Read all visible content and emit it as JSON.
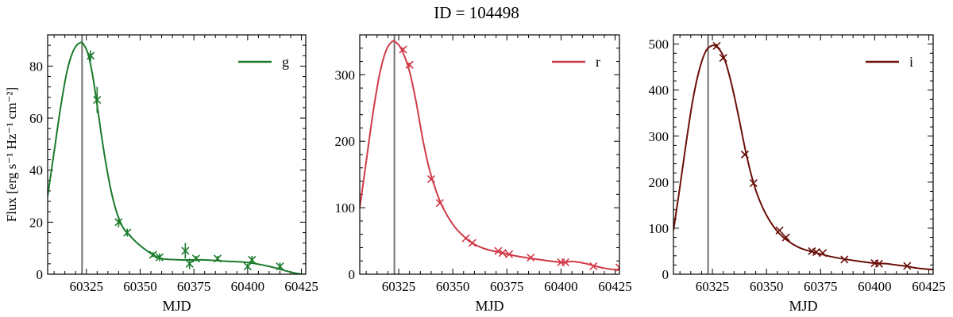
{
  "figure": {
    "title": "ID = 104498"
  },
  "chart_data": [
    {
      "type": "line",
      "xlabel": "MJD",
      "ylabel": "Flux [erg s⁻¹ Hz⁻¹ cm⁻²]",
      "xlim": [
        60307,
        60427
      ],
      "ylim": [
        0,
        92
      ],
      "xticks": [
        60325,
        60350,
        60375,
        60400,
        60425
      ],
      "yticks": [
        0,
        20,
        40,
        60,
        80
      ],
      "vline_x": 60323,
      "legend": {
        "label": "g",
        "position": "top-right"
      },
      "color": "#1a7a2a",
      "model": {
        "x": [
          60307,
          60310,
          60313,
          60316,
          60319,
          60322,
          60324,
          60326,
          60328,
          60330,
          60333,
          60336,
          60339,
          60342,
          60345,
          60350,
          60355,
          60360,
          60370,
          60380,
          60390,
          60400,
          60410,
          60420,
          60425,
          60427
        ],
        "y": [
          30,
          47,
          64,
          78,
          86,
          89,
          88,
          84,
          76,
          65,
          48,
          34,
          24,
          18,
          15,
          11,
          8,
          6,
          5.5,
          5.5,
          5,
          4.5,
          3,
          0.8,
          0,
          0
        ]
      },
      "observations": {
        "x": [
          60327,
          60330,
          60340,
          60344,
          60356,
          60359,
          60371,
          60373,
          60376,
          60386,
          60400,
          60402,
          60415
        ],
        "y": [
          84,
          67,
          20,
          16,
          7.5,
          6.5,
          9,
          4,
          6,
          6,
          3,
          5.5,
          3
        ],
        "err": [
          2,
          5,
          2,
          1.5,
          1,
          1.5,
          3,
          2,
          1,
          1,
          1,
          1.5,
          1.5
        ]
      }
    },
    {
      "type": "line",
      "xlabel": "MJD",
      "ylabel": "",
      "xlim": [
        60307,
        60427
      ],
      "ylim": [
        0,
        360
      ],
      "xticks": [
        60325,
        60350,
        60375,
        60400,
        60425
      ],
      "yticks": [
        0,
        100,
        200,
        300
      ],
      "vline_x": 60323,
      "legend": {
        "label": "r",
        "position": "top-right"
      },
      "color": "#d03a48",
      "model": {
        "x": [
          60307,
          60310,
          60313,
          60316,
          60319,
          60322,
          60324,
          60326,
          60328,
          60330,
          60333,
          60336,
          60339,
          60342,
          60345,
          60350,
          60355,
          60360,
          60365,
          60370,
          60380,
          60390,
          60400,
          60405,
          60410,
          60415,
          60420,
          60427
        ],
        "y": [
          100,
          170,
          240,
          298,
          335,
          350,
          348,
          340,
          325,
          305,
          260,
          205,
          160,
          128,
          103,
          75,
          57,
          45,
          38,
          34,
          27,
          22,
          18,
          19,
          17,
          13,
          9,
          6
        ]
      },
      "observations": {
        "x": [
          60327,
          60330,
          60340,
          60344,
          60356,
          60359,
          60371,
          60373,
          60376,
          60386,
          60400,
          60402,
          60415,
          60427
        ],
        "y": [
          338,
          315,
          143,
          107,
          54,
          47,
          35,
          32,
          30,
          25,
          18,
          18,
          12,
          10
        ],
        "err": [
          3,
          3,
          2,
          2,
          2,
          2,
          1.5,
          1.5,
          1.5,
          1.5,
          1.5,
          1.5,
          1.5,
          1.5
        ]
      }
    },
    {
      "type": "line",
      "xlabel": "MJD",
      "ylabel": "",
      "xlim": [
        60307,
        60427
      ],
      "ylim": [
        0,
        520
      ],
      "xticks": [
        60325,
        60350,
        60375,
        60400,
        60425
      ],
      "yticks": [
        0,
        100,
        200,
        300,
        400,
        500
      ],
      "vline_x": 60323,
      "legend": {
        "label": "i",
        "position": "top-right"
      },
      "color": "#6b0f0a",
      "model": {
        "x": [
          60307,
          60310,
          60313,
          60316,
          60319,
          60322,
          60325,
          60327,
          60329,
          60331,
          60334,
          60337,
          60340,
          60343,
          60346,
          60350,
          60355,
          60360,
          60365,
          60370,
          60375,
          60380,
          60390,
          60400,
          60405,
          60410,
          60415,
          60420,
          60427
        ],
        "y": [
          95,
          190,
          290,
          380,
          445,
          485,
          497,
          494,
          483,
          462,
          410,
          345,
          275,
          215,
          170,
          128,
          93,
          72,
          58,
          50,
          44,
          38,
          30,
          24,
          23,
          20,
          17,
          13,
          10
        ]
      },
      "observations": {
        "x": [
          60327,
          60330,
          60340,
          60344,
          60356,
          60359,
          60371,
          60373,
          60376,
          60386,
          60400,
          60402,
          60415
        ],
        "y": [
          496,
          470,
          260,
          198,
          95,
          80,
          50,
          48,
          46,
          32,
          24,
          23,
          18
        ],
        "err": [
          4,
          4,
          3,
          3,
          2,
          2,
          2,
          2,
          2,
          2,
          2,
          2,
          2
        ]
      }
    }
  ]
}
